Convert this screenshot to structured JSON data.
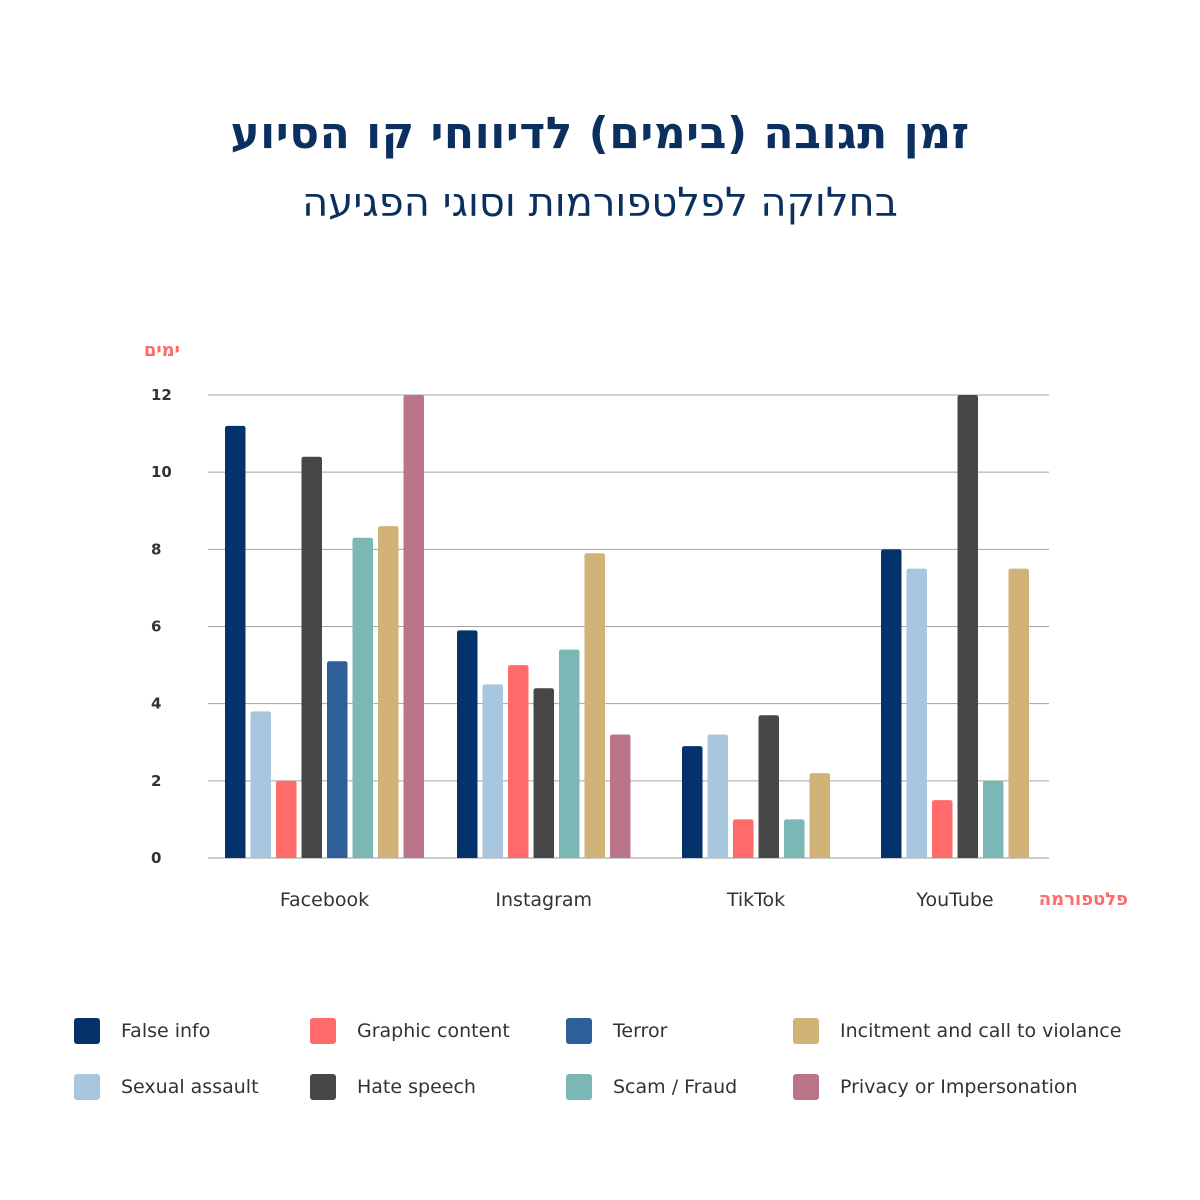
{
  "header": {
    "title": "זמן תגובה (בימים) לדיווחי קו הסיוע",
    "subtitle": "בחלוקה לפלטפורמות וסוגי הפגיעה"
  },
  "chart_data": {
    "type": "bar",
    "title": "זמן תגובה (בימים) לדיווחי קו הסיוע",
    "subtitle": "בחלוקה לפלטפורמות וסוגי הפגיעה",
    "ylabel": "ימים",
    "xlabel": "פלטפורמה",
    "ylim": [
      0,
      12
    ],
    "yticks": [
      0,
      2,
      4,
      6,
      8,
      10,
      12
    ],
    "grid": true,
    "legend_position": "bottom",
    "categories": [
      "Facebook",
      "Instagram",
      "TikTok",
      "YouTube"
    ],
    "series": [
      {
        "name": "False info",
        "color": "#04326a",
        "values": [
          11.2,
          5.9,
          2.9,
          8.0
        ]
      },
      {
        "name": "Sexual assault",
        "color": "#a8c7de",
        "values": [
          3.8,
          4.5,
          3.2,
          7.5
        ]
      },
      {
        "name": "Graphic content",
        "color": "#ff6b6b",
        "values": [
          2.0,
          5.0,
          1.0,
          1.5
        ]
      },
      {
        "name": "Hate speech",
        "color": "#474747",
        "values": [
          10.4,
          4.4,
          3.7,
          12.0
        ]
      },
      {
        "name": "Terror",
        "color": "#2e5f98",
        "values": [
          5.1,
          null,
          null,
          null
        ]
      },
      {
        "name": "Scam / Fraud",
        "color": "#7bb7b5",
        "values": [
          8.3,
          5.4,
          1.0,
          2.0
        ]
      },
      {
        "name": "Incitment and call to violance",
        "color": "#d1b277",
        "values": [
          8.6,
          7.9,
          2.2,
          7.5
        ]
      },
      {
        "name": "Privacy or Impersonation",
        "color": "#bb7589",
        "values": [
          12.0,
          3.2,
          null,
          null
        ]
      }
    ]
  }
}
